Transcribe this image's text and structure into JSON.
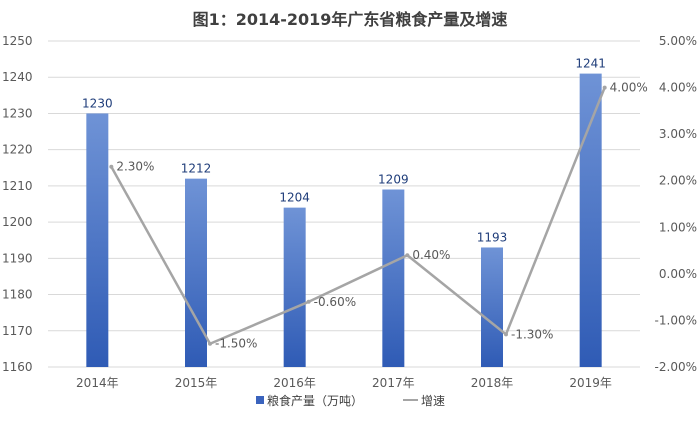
{
  "chart_data": {
    "type": "bar",
    "title": "图1：2014-2019年广东省粮食产量及增速",
    "categories": [
      "2014年",
      "2015年",
      "2016年",
      "2017年",
      "2018年",
      "2019年"
    ],
    "series": [
      {
        "name": "粮食产量（万吨）",
        "type": "bar",
        "axis": "left",
        "values": [
          1230,
          1212,
          1204,
          1209,
          1193,
          1241
        ],
        "labels": [
          "1230",
          "1212",
          "1204",
          "1209",
          "1193",
          "1241"
        ],
        "color": "#4472c4"
      },
      {
        "name": "增速",
        "type": "line",
        "axis": "right",
        "values": [
          2.3,
          -1.5,
          -0.6,
          0.4,
          -1.3,
          4.0
        ],
        "labels": [
          "2.30%",
          "-1.50%",
          "-0.60%",
          "0.40%",
          "-1.30%",
          "4.00%"
        ],
        "color": "#a5a5a5"
      }
    ],
    "y_left": {
      "min": 1160,
      "max": 1250,
      "ticks": [
        "1160",
        "1170",
        "1180",
        "1190",
        "1200",
        "1210",
        "1220",
        "1230",
        "1240",
        "1250"
      ]
    },
    "y_right": {
      "min": -2,
      "max": 5,
      "ticks": [
        "-2.00%",
        "-1.00%",
        "0.00%",
        "1.00%",
        "2.00%",
        "3.00%",
        "4.00%",
        "5.00%"
      ]
    },
    "grid": true,
    "legend_position": "bottom"
  }
}
